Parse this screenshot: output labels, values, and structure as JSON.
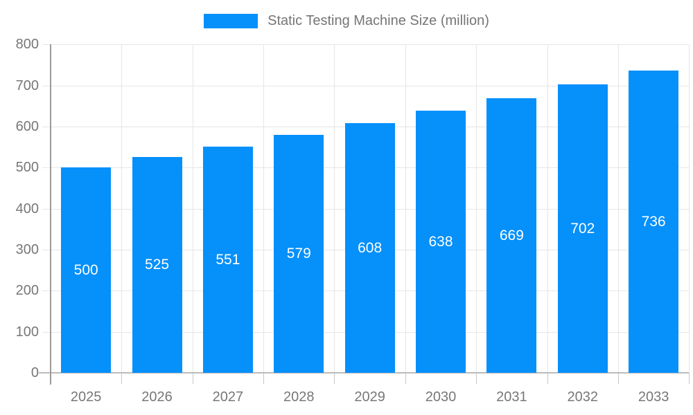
{
  "legend": {
    "series_label": "Static Testing Machine Size (million)"
  },
  "chart_data": {
    "type": "bar",
    "title": "Static Testing Machine Size (million)",
    "categories": [
      "2025",
      "2026",
      "2027",
      "2028",
      "2029",
      "2030",
      "2031",
      "2032",
      "2033"
    ],
    "values": [
      500,
      525,
      551,
      579,
      608,
      638,
      669,
      702,
      736
    ],
    "value_labels": [
      "500",
      "525",
      "551",
      "579",
      "608",
      "638",
      "669",
      "702",
      "736"
    ],
    "xlabel": "",
    "ylabel": "",
    "ylim": [
      0,
      800
    ],
    "ytick_step": 100,
    "ytick_labels": [
      "0",
      "100",
      "200",
      "300",
      "400",
      "500",
      "600",
      "700",
      "800"
    ],
    "grid": true,
    "legend_position": "top",
    "colors": {
      "bar": "#0590FA",
      "value_label": "#ffffff",
      "axis_label": "#777777",
      "legend_label": "#757575",
      "gridline": "#e6e6e6",
      "x_axis_line": "#bbbbbb",
      "y_axis_line": "#9a9a9a",
      "tick": "#c6c6c6",
      "background": "#ffffff"
    }
  }
}
